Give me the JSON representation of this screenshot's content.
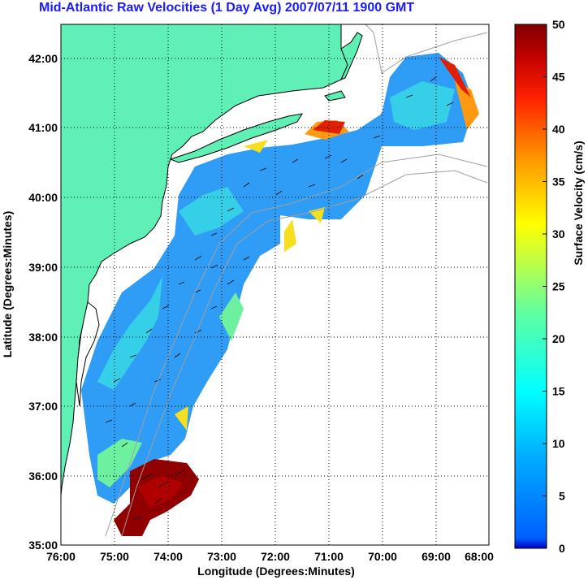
{
  "title": "Mid-Atlantic Raw Velocities (1 Day Avg) 2007/07/11 1900 GMT",
  "map": {
    "xlabel": "Longitude (Degrees:Minutes)",
    "ylabel": "Latitude (Degrees:Minutes)",
    "x_ticks": [
      "76:00",
      "75:00",
      "74:00",
      "73:00",
      "72:00",
      "71:00",
      "70:00",
      "69:00",
      "68:00"
    ],
    "y_ticks": [
      "42:00",
      "41:00",
      "40:00",
      "39:00",
      "38:00",
      "37:00",
      "36:00",
      "35:00"
    ],
    "xlim": [
      -76,
      -68
    ],
    "ylim": [
      35,
      42.5
    ],
    "grid": "dotted",
    "land_color": "#5ef0b4",
    "coast_color": "#000000",
    "bathymetry_color": "#a0a0a0"
  },
  "colorbar": {
    "label": "Surface Velocity (cm/s)",
    "ticks": [
      "50",
      "45",
      "40",
      "35",
      "30",
      "25",
      "20",
      "15",
      "10",
      "5",
      "0"
    ],
    "range": [
      0,
      50
    ],
    "colormap": "jet"
  }
}
